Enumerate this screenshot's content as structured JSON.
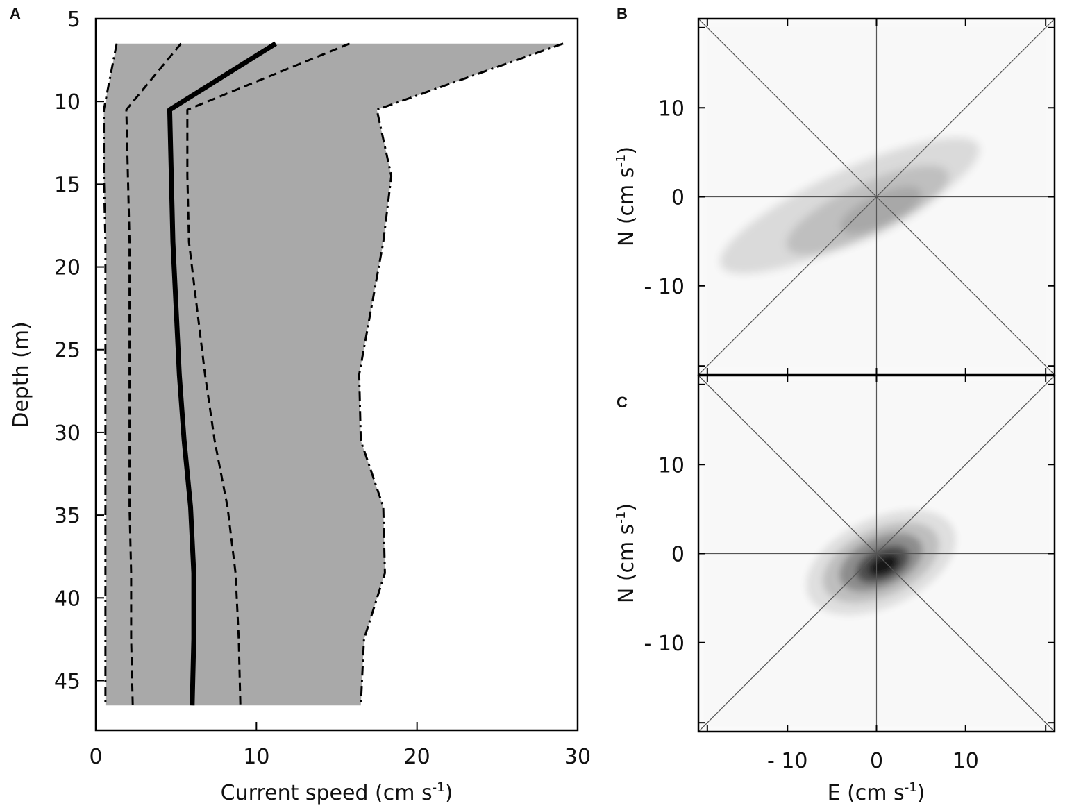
{
  "chart_data": [
    {
      "panel": "A",
      "type": "line",
      "xlabel": "Current speed (cm s",
      "xlabel_sup": "-1",
      "xlabel_close": ")",
      "ylabel": "Depth (m)",
      "xlim": [
        0,
        30
      ],
      "ylim": [
        5,
        48
      ],
      "y_inverted": true,
      "xticks": [
        0,
        10,
        20,
        30
      ],
      "yticks": [
        5,
        10,
        15,
        20,
        25,
        30,
        35,
        40,
        45
      ],
      "grid": false,
      "band_fill": "#a9a9a9",
      "series": [
        {
          "style": "dashdot",
          "x": [
            1.3,
            0.5,
            0.5,
            0.6,
            0.6,
            0.6,
            0.6,
            0.6,
            0.6,
            0.6
          ],
          "y": [
            6.5,
            10.5,
            14.5,
            18.5,
            26.5,
            30.5,
            34.5,
            38.5,
            42.5,
            46.5
          ]
        },
        {
          "style": "dashed",
          "x": [
            5.3,
            1.9,
            2.0,
            2.1,
            2.1,
            2.1,
            2.1,
            2.2,
            2.2,
            2.3
          ],
          "y": [
            6.5,
            10.5,
            14.5,
            18.5,
            26.5,
            30.5,
            34.5,
            38.5,
            42.5,
            46.5
          ]
        },
        {
          "style": "solid",
          "x": [
            11.2,
            4.6,
            4.7,
            4.8,
            5.2,
            5.5,
            5.9,
            6.1,
            6.1,
            6.0
          ],
          "y": [
            6.5,
            10.5,
            14.5,
            18.5,
            26.5,
            30.5,
            34.5,
            38.5,
            42.5,
            46.5
          ]
        },
        {
          "style": "dashed",
          "x": [
            15.8,
            5.7,
            5.7,
            5.8,
            6.8,
            7.4,
            8.2,
            8.7,
            8.9,
            9.0
          ],
          "y": [
            6.5,
            10.5,
            14.5,
            18.5,
            26.5,
            30.5,
            34.5,
            38.5,
            42.5,
            46.5
          ]
        },
        {
          "style": "dashdot",
          "x": [
            29.1,
            17.5,
            18.4,
            17.9,
            16.4,
            16.5,
            17.9,
            18.0,
            16.7,
            16.5
          ],
          "y": [
            6.5,
            10.5,
            14.5,
            18.5,
            26.5,
            30.5,
            34.5,
            38.5,
            42.5,
            46.5
          ]
        }
      ]
    },
    {
      "panel": "B",
      "type": "heatmap",
      "ylabel": "N (cm s",
      "ylabel_sup": "-1",
      "ylabel_close": ")",
      "xlim": [
        -20,
        20
      ],
      "ylim": [
        -20,
        20
      ],
      "yticks": [
        -10,
        0,
        10
      ],
      "ytick_labels": [
        "- 10",
        "0",
        "10"
      ],
      "grid": false,
      "reference_lines": [
        "horizontal",
        "vertical",
        "diagonal-up",
        "diagonal-down"
      ],
      "density_blobs": [
        {
          "cx": -3,
          "cy": -1,
          "rx": 16,
          "ry": 4,
          "angle": -25,
          "opacity": 0.12
        },
        {
          "cx": -1,
          "cy": -1.5,
          "rx": 10,
          "ry": 3,
          "angle": -25,
          "opacity": 0.12
        },
        {
          "cx": 0.5,
          "cy": -1.5,
          "rx": 5,
          "ry": 1.8,
          "angle": -25,
          "opacity": 0.12
        }
      ]
    },
    {
      "panel": "C",
      "type": "heatmap",
      "xlabel": "E (cm s",
      "xlabel_sup": "-1",
      "xlabel_close": ")",
      "ylabel": "N (cm s",
      "ylabel_sup": "-1",
      "ylabel_close": ")",
      "xlim": [
        -20,
        20
      ],
      "ylim": [
        -20,
        20
      ],
      "xticks": [
        -10,
        0,
        10
      ],
      "xtick_labels": [
        "- 10",
        "0",
        "10"
      ],
      "yticks": [
        -10,
        0,
        10
      ],
      "ytick_labels": [
        "- 10",
        "0",
        "10"
      ],
      "grid": false,
      "reference_lines": [
        "horizontal",
        "vertical",
        "diagonal-up",
        "diagonal-down"
      ],
      "density_blobs": [
        {
          "cx": 0.5,
          "cy": -1,
          "rx": 9,
          "ry": 5,
          "angle": -25,
          "opacity": 0.1
        },
        {
          "cx": 0.5,
          "cy": -1,
          "rx": 7,
          "ry": 3.8,
          "angle": -25,
          "opacity": 0.15
        },
        {
          "cx": 0.5,
          "cy": -1,
          "rx": 5,
          "ry": 2.8,
          "angle": -25,
          "opacity": 0.25
        },
        {
          "cx": 0.7,
          "cy": -1.2,
          "rx": 3.2,
          "ry": 1.8,
          "angle": -25,
          "opacity": 0.45
        },
        {
          "cx": 0.8,
          "cy": -1.3,
          "rx": 1.8,
          "ry": 1.0,
          "angle": -25,
          "opacity": 0.7
        }
      ]
    }
  ]
}
